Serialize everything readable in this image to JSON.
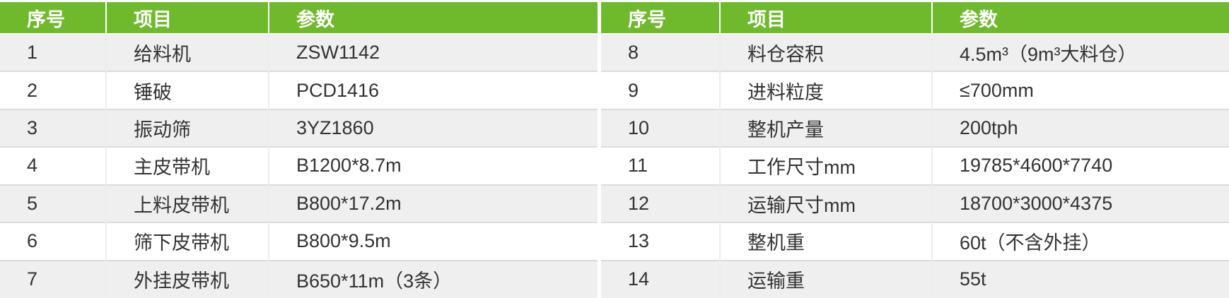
{
  "colors": {
    "header_bg": "#6fb92d",
    "header_text": "#ffffff",
    "row_alt_bg": "#efefef",
    "row_bg": "#ffffff",
    "body_text": "#333333"
  },
  "left_table": {
    "headers": [
      "序号",
      "项目",
      "参数"
    ],
    "rows": [
      [
        "1",
        "给料机",
        "ZSW1142"
      ],
      [
        "2",
        "锤破",
        "PCD1416"
      ],
      [
        "3",
        "振动筛",
        "3YZ1860"
      ],
      [
        "4",
        "主皮带机",
        "B1200*8.7m"
      ],
      [
        "5",
        "上料皮带机",
        "B800*17.2m"
      ],
      [
        "6",
        "筛下皮带机",
        "B800*9.5m"
      ],
      [
        "7",
        "外挂皮带机",
        "B650*11m（3条）"
      ]
    ]
  },
  "right_table": {
    "headers": [
      "序号",
      "项目",
      "参数"
    ],
    "rows": [
      [
        "8",
        "料仓容积",
        "4.5m³（9m³大料仓）"
      ],
      [
        "9",
        "进料粒度",
        "≤700mm"
      ],
      [
        "10",
        "整机产量",
        "200tph"
      ],
      [
        "11",
        "工作尺寸mm",
        "19785*4600*7740"
      ],
      [
        "12",
        "运输尺寸mm",
        "18700*3000*4375"
      ],
      [
        "13",
        "整机重",
        "60t（不含外挂）"
      ],
      [
        "14",
        "运输重",
        "55t"
      ]
    ]
  }
}
